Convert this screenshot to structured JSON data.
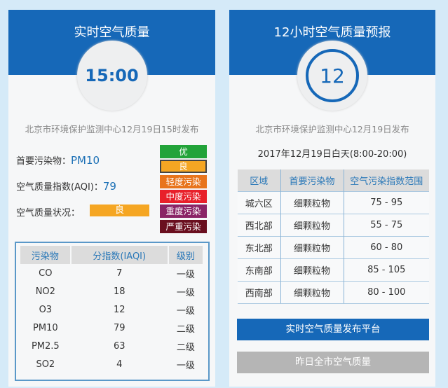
{
  "realtime": {
    "title": "实时空气质量",
    "time": "15:00",
    "publisher": "北京市环境保护监测中心12月19日15时发布",
    "primary_label": "首要污染物：",
    "primary_value": "PM10",
    "aqi_label": "空气质量指数(AQI)：",
    "aqi_value": "79",
    "status_label": "空气质量状况：",
    "status_value": "良",
    "status_color": "#f5a623",
    "legend": [
      {
        "label": "优",
        "color": "#22a339"
      },
      {
        "label": "良",
        "color": "#f5a623",
        "selected": true
      },
      {
        "label": "轻度污染",
        "color": "#e8741c"
      },
      {
        "label": "中度污染",
        "color": "#e8202a"
      },
      {
        "label": "重度污染",
        "color": "#8a2466"
      },
      {
        "label": "严重污染",
        "color": "#6a0f1f"
      }
    ],
    "table": {
      "headers": [
        "污染物",
        "分指数(IAQI)",
        "级别"
      ],
      "rows": [
        [
          "CO",
          "7",
          "一级"
        ],
        [
          "NO2",
          "18",
          "一级"
        ],
        [
          "O3",
          "12",
          "一级"
        ],
        [
          "PM10",
          "79",
          "二级"
        ],
        [
          "PM2.5",
          "63",
          "二级"
        ],
        [
          "SO2",
          "4",
          "一级"
        ]
      ]
    }
  },
  "forecast": {
    "title": "12小时空气质量预报",
    "hours": "12",
    "publisher": "北京市环境保护监测中心12月19日发布",
    "period": "2017年12月19日白天(8:00-20:00)",
    "table": {
      "headers": [
        "区域",
        "首要污染物",
        "空气污染指数范围"
      ],
      "rows": [
        [
          "城六区",
          "细颗粒物",
          "75 - 95"
        ],
        [
          "西北部",
          "细颗粒物",
          "55 - 75"
        ],
        [
          "东北部",
          "细颗粒物",
          "60 - 80"
        ],
        [
          "东南部",
          "细颗粒物",
          "85 - 105"
        ],
        [
          "西南部",
          "细颗粒物",
          "80 - 100"
        ]
      ]
    },
    "btn_platform": "实时空气质量发布平台",
    "btn_yesterday": "昨日全市空气质量"
  },
  "colors": {
    "brand": "#1668b8",
    "background": "#d5eaf8",
    "button_gray": "#b5b5b5"
  }
}
